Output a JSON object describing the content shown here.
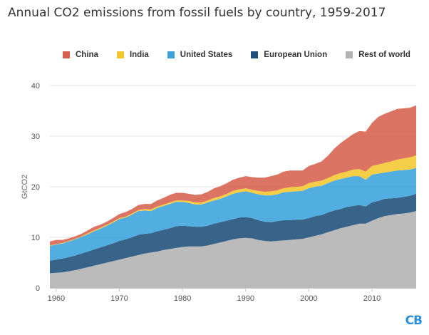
{
  "chart_data": {
    "type": "area",
    "stacked": true,
    "title": "Annual CO2 emissions from fossil fuels by country, 1959-2017",
    "xlabel": "",
    "ylabel": "GtCO2",
    "xlim": [
      1959,
      2017
    ],
    "ylim": [
      0,
      40
    ],
    "x_ticks": [
      1960,
      1970,
      1980,
      1990,
      2000,
      2010
    ],
    "y_ticks": [
      0,
      10,
      20,
      30,
      40
    ],
    "grid": true,
    "legend_position": "top",
    "x": [
      1959,
      1960,
      1961,
      1962,
      1963,
      1964,
      1965,
      1966,
      1967,
      1968,
      1969,
      1970,
      1971,
      1972,
      1973,
      1974,
      1975,
      1976,
      1977,
      1978,
      1979,
      1980,
      1981,
      1982,
      1983,
      1984,
      1985,
      1986,
      1987,
      1988,
      1989,
      1990,
      1991,
      1992,
      1993,
      1994,
      1995,
      1996,
      1997,
      1998,
      1999,
      2000,
      2001,
      2002,
      2003,
      2004,
      2005,
      2006,
      2007,
      2008,
      2009,
      2010,
      2011,
      2012,
      2013,
      2014,
      2015,
      2016,
      2017
    ],
    "series": [
      {
        "name": "Rest of world",
        "color": "#b2b2b2",
        "values": [
          2.9,
          3.0,
          3.1,
          3.3,
          3.5,
          3.8,
          4.1,
          4.4,
          4.7,
          5.0,
          5.3,
          5.6,
          5.9,
          6.2,
          6.5,
          6.8,
          7.0,
          7.2,
          7.5,
          7.7,
          7.9,
          8.1,
          8.2,
          8.2,
          8.2,
          8.4,
          8.7,
          9.0,
          9.3,
          9.6,
          9.8,
          9.9,
          9.8,
          9.5,
          9.3,
          9.2,
          9.3,
          9.4,
          9.5,
          9.6,
          9.7,
          10.0,
          10.3,
          10.6,
          11.0,
          11.4,
          11.8,
          12.1,
          12.4,
          12.7,
          12.7,
          13.3,
          13.8,
          14.2,
          14.4,
          14.6,
          14.7,
          14.9,
          15.2
        ]
      },
      {
        "name": "European Union",
        "color": "#1e4f7a",
        "values": [
          2.5,
          2.6,
          2.7,
          2.8,
          2.9,
          3.0,
          3.1,
          3.2,
          3.3,
          3.4,
          3.5,
          3.7,
          3.7,
          3.8,
          4.0,
          3.9,
          3.8,
          4.0,
          4.0,
          4.1,
          4.3,
          4.2,
          4.0,
          3.9,
          3.9,
          3.9,
          4.0,
          4.0,
          4.0,
          4.0,
          4.1,
          4.1,
          4.0,
          3.9,
          3.8,
          3.8,
          3.9,
          4.0,
          3.9,
          3.9,
          3.8,
          3.8,
          3.9,
          3.8,
          3.9,
          3.9,
          3.8,
          3.9,
          3.8,
          3.7,
          3.4,
          3.6,
          3.4,
          3.4,
          3.3,
          3.2,
          3.3,
          3.3,
          3.4
        ]
      },
      {
        "name": "United States",
        "color": "#3aa3dc",
        "values": [
          2.9,
          3.0,
          3.0,
          3.1,
          3.2,
          3.3,
          3.4,
          3.6,
          3.7,
          3.9,
          4.1,
          4.3,
          4.3,
          4.5,
          4.7,
          4.6,
          4.4,
          4.6,
          4.7,
          4.8,
          4.8,
          4.7,
          4.6,
          4.4,
          4.4,
          4.6,
          4.6,
          4.6,
          4.8,
          5.0,
          5.0,
          5.1,
          5.0,
          5.1,
          5.2,
          5.3,
          5.3,
          5.5,
          5.6,
          5.6,
          5.7,
          5.9,
          5.8,
          5.8,
          5.8,
          5.9,
          5.9,
          5.8,
          5.9,
          5.7,
          5.3,
          5.5,
          5.4,
          5.2,
          5.3,
          5.4,
          5.3,
          5.2,
          5.1
        ]
      },
      {
        "name": "India",
        "color": "#f2c72e",
        "values": [
          0.1,
          0.1,
          0.1,
          0.1,
          0.1,
          0.1,
          0.2,
          0.2,
          0.2,
          0.2,
          0.2,
          0.2,
          0.2,
          0.2,
          0.2,
          0.3,
          0.3,
          0.3,
          0.3,
          0.3,
          0.3,
          0.3,
          0.4,
          0.4,
          0.4,
          0.4,
          0.5,
          0.5,
          0.5,
          0.6,
          0.6,
          0.6,
          0.6,
          0.7,
          0.7,
          0.8,
          0.8,
          0.8,
          0.9,
          0.9,
          0.9,
          1.0,
          1.0,
          1.0,
          1.0,
          1.1,
          1.2,
          1.2,
          1.3,
          1.4,
          1.6,
          1.7,
          1.8,
          1.9,
          2.0,
          2.2,
          2.3,
          2.4,
          2.5
        ]
      },
      {
        "name": "China",
        "color": "#d7614d",
        "values": [
          0.8,
          0.8,
          0.6,
          0.5,
          0.5,
          0.5,
          0.6,
          0.7,
          0.6,
          0.6,
          0.7,
          0.8,
          0.9,
          0.9,
          1.0,
          1.0,
          1.1,
          1.2,
          1.3,
          1.5,
          1.5,
          1.5,
          1.4,
          1.5,
          1.6,
          1.7,
          1.9,
          2.0,
          2.1,
          2.2,
          2.3,
          2.4,
          2.5,
          2.6,
          2.8,
          3.0,
          3.1,
          3.3,
          3.3,
          3.2,
          3.1,
          3.4,
          3.5,
          3.8,
          4.4,
          5.2,
          5.9,
          6.5,
          7.0,
          7.5,
          7.9,
          8.5,
          9.4,
          9.7,
          9.9,
          10.0,
          9.9,
          9.8,
          9.9
        ]
      }
    ]
  }
}
